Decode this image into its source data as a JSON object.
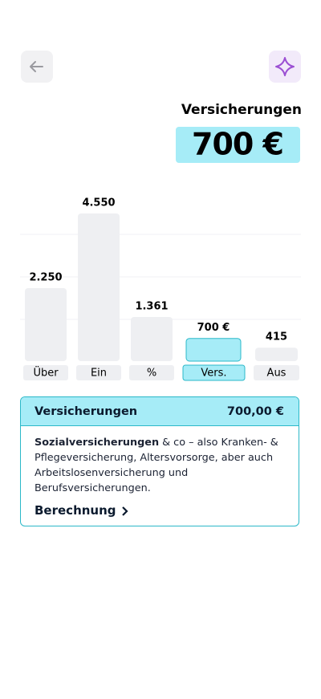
{
  "header": {
    "title": "Versicherungen",
    "amount": "700 €"
  },
  "chart_data": {
    "type": "bar",
    "categories": [
      "Über",
      "Ein",
      "%",
      "Vers.",
      "Aus"
    ],
    "values": [
      2250,
      4550,
      1361,
      700,
      415
    ],
    "value_labels": [
      "2.250",
      "4.550",
      "1.361",
      "700 €",
      "415"
    ],
    "colors": [
      "#eeeff2",
      "#eeeff2",
      "#eeeff2",
      "#a6ecf7",
      "#eeeff2"
    ],
    "borders": [
      null,
      null,
      null,
      "#2bb8c8",
      null
    ]
  },
  "card": {
    "title": "Versicherungen",
    "amount": "700,00 €",
    "text_bold": "Sozialversicherungen",
    "text": "& co – also Kranken- & Pflegeversicherung, Altersvorsorge, aber auch Arbeitslosenversicherung und Berufsversicherungen.",
    "link": "Berechnung"
  }
}
